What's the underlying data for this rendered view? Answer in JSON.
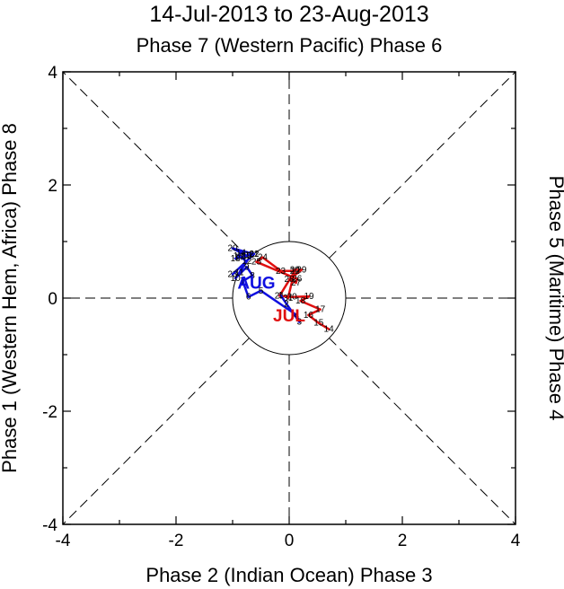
{
  "chart_data": {
    "type": "line",
    "title": "14-Jul-2013 to 23-Aug-2013",
    "phase_labels": {
      "top": "Phase 7 (Western Pacific) Phase 6",
      "bottom": "Phase 2 (Indian Ocean) Phase 3",
      "left": "Phase 1 (Western Hem, Africa) Phase 8",
      "right": "Phase 5 (Maritime) Phase 4"
    },
    "xlim": [
      -4,
      4
    ],
    "ylim": [
      -4,
      4
    ],
    "x_ticks": [
      "-4",
      "-2",
      "0",
      "2",
      "4"
    ],
    "y_ticks": [
      "-4",
      "-2",
      "0",
      "2",
      "4"
    ],
    "unit_circle_radius": 1,
    "series": [
      {
        "name": "JUL",
        "color": "#e01010",
        "points": [
          {
            "day": "14",
            "x": 0.7,
            "y": -0.55
          },
          {
            "day": "15",
            "x": 0.52,
            "y": -0.44
          },
          {
            "day": "16",
            "x": 0.34,
            "y": -0.3
          },
          {
            "day": "17",
            "x": 0.55,
            "y": -0.2
          },
          {
            "day": "18",
            "x": 0.2,
            "y": -0.05
          },
          {
            "day": "19",
            "x": 0.35,
            "y": 0.03
          },
          {
            "day": "20",
            "x": 0.05,
            "y": 0.02
          },
          {
            "day": "21",
            "x": -0.17,
            "y": 0.04
          },
          {
            "day": "22",
            "x": 0.1,
            "y": 0.48
          },
          {
            "day": "23",
            "x": -0.15,
            "y": 0.48
          },
          {
            "day": "24",
            "x": -0.47,
            "y": 0.72
          },
          {
            "day": "25",
            "x": -0.58,
            "y": 0.64
          },
          {
            "day": "26",
            "x": 0.14,
            "y": 0.34
          },
          {
            "day": "27",
            "x": 0.12,
            "y": 0.27
          },
          {
            "day": "28",
            "x": 0.0,
            "y": 0.33
          },
          {
            "day": "29",
            "x": 0.22,
            "y": 0.5
          },
          {
            "day": "30",
            "x": 0.1,
            "y": 0.5
          },
          {
            "day": "31",
            "x": -0.02,
            "y": 0.0
          }
        ]
      },
      {
        "name": "AUG",
        "color": "#1010e0",
        "points": [
          {
            "day": "1",
            "x": -0.15,
            "y": 0.05
          },
          {
            "day": "2",
            "x": -0.05,
            "y": -0.1
          },
          {
            "day": "3",
            "x": 0.18,
            "y": -0.42
          },
          {
            "day": "4",
            "x": 0.13,
            "y": -0.3
          },
          {
            "day": "5",
            "x": -0.5,
            "y": 0.13
          },
          {
            "day": "6",
            "x": -0.72,
            "y": 0.02
          },
          {
            "day": "7",
            "x": -0.82,
            "y": 0.3
          },
          {
            "day": "8",
            "x": -0.65,
            "y": 0.4
          },
          {
            "day": "9",
            "x": -0.75,
            "y": 0.55
          },
          {
            "day": "10",
            "x": -0.95,
            "y": 0.35
          },
          {
            "day": "11",
            "x": -0.88,
            "y": 0.45
          },
          {
            "day": "12",
            "x": -0.75,
            "y": 0.65
          },
          {
            "day": "13",
            "x": -0.9,
            "y": 0.75
          },
          {
            "day": "14",
            "x": -0.85,
            "y": 0.8
          },
          {
            "day": "15",
            "x": -0.75,
            "y": 0.75
          },
          {
            "day": "16",
            "x": -0.7,
            "y": 0.76
          },
          {
            "day": "17",
            "x": -0.88,
            "y": 0.72
          },
          {
            "day": "18",
            "x": -0.95,
            "y": 0.7
          },
          {
            "day": "19",
            "x": -0.75,
            "y": 0.75
          },
          {
            "day": "20",
            "x": -1.0,
            "y": 0.88
          },
          {
            "day": "21",
            "x": -0.62,
            "y": 0.78
          },
          {
            "day": "22",
            "x": -0.62,
            "y": 0.78
          },
          {
            "day": "23",
            "x": -1.0,
            "y": 0.42
          }
        ]
      }
    ],
    "month_labels": [
      {
        "text": "JUL",
        "color": "#e01010",
        "x": 0.0,
        "y": -0.3
      },
      {
        "text": "AUG",
        "color": "#1010e0",
        "x": -0.58,
        "y": 0.28
      }
    ]
  }
}
